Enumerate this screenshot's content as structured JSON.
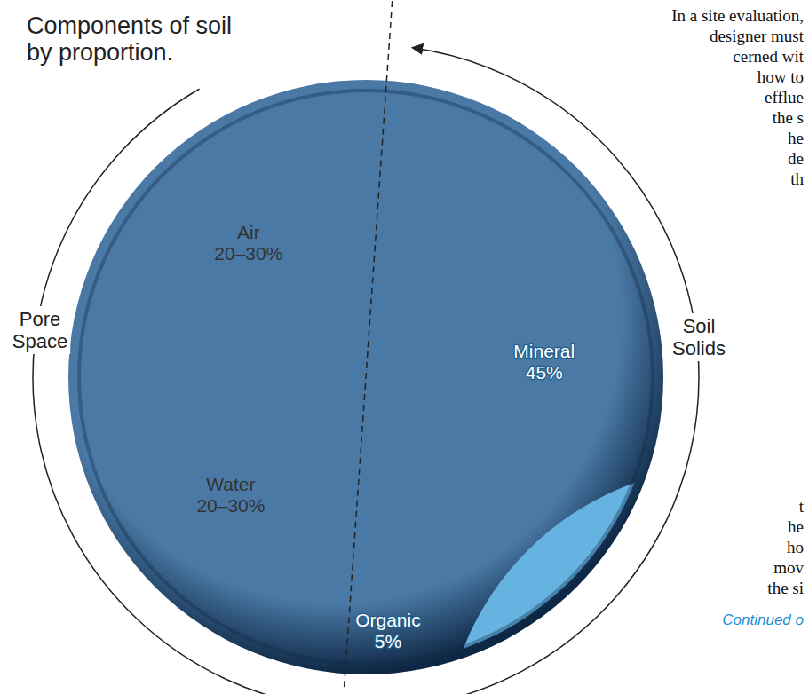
{
  "chart_data": {
    "type": "pie",
    "title": "Components of soil by proportion.",
    "categories": [
      "Mineral",
      "Organic",
      "Water",
      "Air"
    ],
    "values": [
      45,
      5,
      25,
      25
    ],
    "value_labels": [
      "45%",
      "5%",
      "20–30%",
      "20–30%"
    ],
    "colors": [
      "#66b2e0",
      "#3f98d3",
      "#9cc7e6",
      "#eaf3fa"
    ],
    "data_labels": true,
    "annotations": [
      "Pore Space",
      "Soil Solids"
    ],
    "body_text": [
      [
        "In a site evaluation,",
        "designer must",
        "cerned wit",
        "how to",
        "efflue",
        "the s",
        "he",
        "de",
        "th"
      ],
      [
        "t",
        "he",
        "ho",
        "mov",
        "the si"
      ]
    ],
    "continued": "Continued o"
  }
}
